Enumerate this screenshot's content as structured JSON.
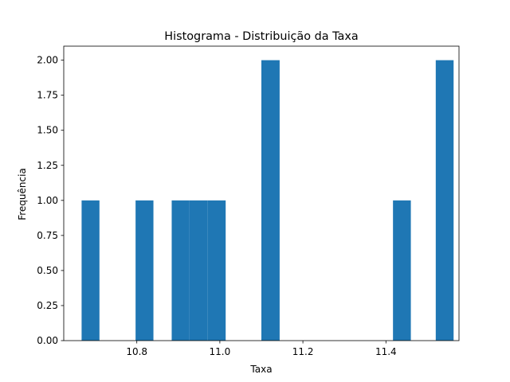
{
  "chart_data": {
    "type": "bar",
    "title": "Histograma - Distribuição da Taxa",
    "xlabel": "Taxa",
    "ylabel": "Frequência",
    "bar_color": "#1f77b4",
    "xlim": [
      10.624,
      11.576
    ],
    "ylim": [
      0,
      2.1
    ],
    "x_ticks": [
      10.8,
      11.0,
      11.2,
      11.4
    ],
    "x_tick_labels": [
      "10.8",
      "11.0",
      "11.2",
      "11.4"
    ],
    "y_ticks": [
      0,
      0.25,
      0.5,
      0.75,
      1.0,
      1.25,
      1.5,
      1.75,
      2.0
    ],
    "y_tick_labels": [
      "0.00",
      "0.25",
      "0.50",
      "0.75",
      "1.00",
      "1.25",
      "1.50",
      "1.75",
      "2.00"
    ],
    "grid": false,
    "bins": [
      {
        "x0": 10.667,
        "x1": 10.71,
        "count": 1
      },
      {
        "x0": 10.797,
        "x1": 10.84,
        "count": 1
      },
      {
        "x0": 10.884,
        "x1": 10.927,
        "count": 1
      },
      {
        "x0": 10.927,
        "x1": 10.97,
        "count": 1
      },
      {
        "x0": 10.97,
        "x1": 11.014,
        "count": 1
      },
      {
        "x0": 11.1,
        "x1": 11.144,
        "count": 2
      },
      {
        "x0": 11.417,
        "x1": 11.46,
        "count": 1
      },
      {
        "x0": 11.52,
        "x1": 11.563,
        "count": 2
      }
    ]
  }
}
